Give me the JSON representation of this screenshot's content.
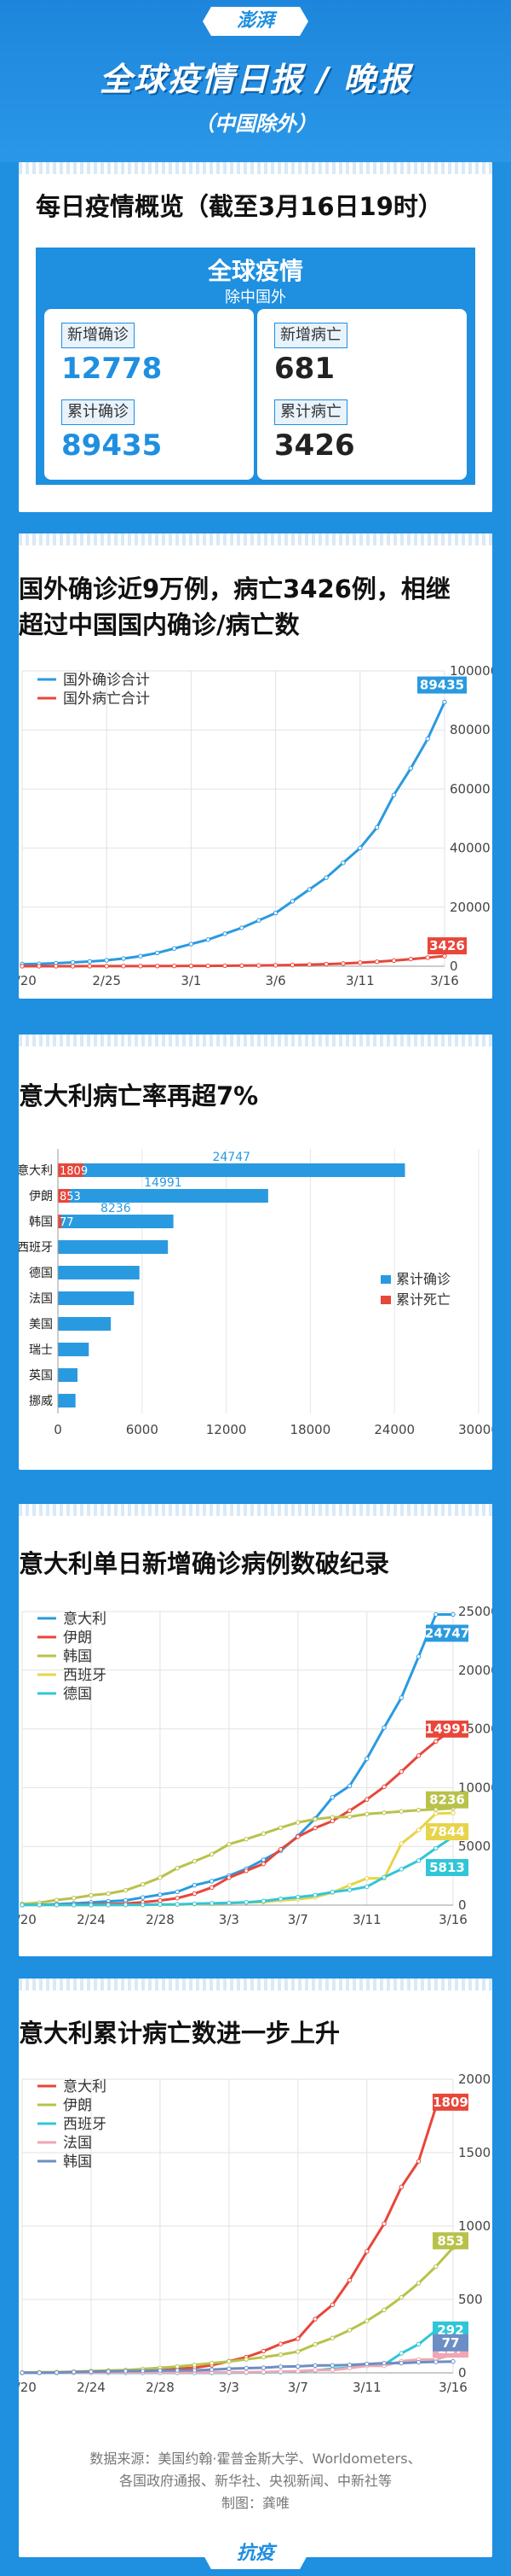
{
  "header": {
    "brand": "澎湃",
    "title": "全球疫情日报 / 晚报",
    "subtitle": "（中国除外）"
  },
  "summary": {
    "heading": "每日疫情概览（截至3月16日19时）",
    "box_title": "全球疫情",
    "box_sub": "除中国外",
    "new_cases_label": "新增确诊",
    "new_cases": "12778",
    "new_deaths_label": "新增病亡",
    "new_deaths": "681",
    "total_cases_label": "累计确诊",
    "total_cases": "89435",
    "total_deaths_label": "累计病亡",
    "total_deaths": "3426",
    "accent": "#1f8fe0"
  },
  "sections": {
    "s1": "国外确诊近9万例，病亡3426例，相继超过中国国内确诊/病亡数",
    "s1_line1": "国外确诊近9万例，病亡3426例，相继",
    "s1_line2": "超过中国国内确诊/病亡数",
    "s2": "意大利病亡率再超7%",
    "s3": "意大利单日新增确诊病例数破纪录",
    "s4": "意大利累计病亡数进一步上升"
  },
  "chart_data": [
    {
      "type": "line",
      "x": [
        "2/20",
        "2/21",
        "2/22",
        "2/23",
        "2/24",
        "2/25",
        "2/26",
        "2/27",
        "2/28",
        "2/29",
        "3/1",
        "3/2",
        "3/3",
        "3/4",
        "3/5",
        "3/6",
        "3/7",
        "3/8",
        "3/9",
        "3/10",
        "3/11",
        "3/12",
        "3/13",
        "3/14",
        "3/15",
        "3/16"
      ],
      "xticks": [
        "2/20",
        "2/25",
        "3/1",
        "3/6",
        "3/11",
        "3/16"
      ],
      "ylim": [
        0,
        100000
      ],
      "yticks": [
        "100000",
        "80000",
        "60000",
        "40000",
        "20000",
        "0"
      ],
      "series": [
        {
          "name": "国外确诊合计",
          "color": "#2a9ae0",
          "end_label": "89435",
          "values": [
            700,
            800,
            1000,
            1300,
            1600,
            2000,
            2600,
            3400,
            4500,
            6000,
            7500,
            9000,
            11000,
            13000,
            15500,
            18000,
            22000,
            26000,
            30000,
            35000,
            40000,
            47000,
            58000,
            67000,
            77000,
            89435
          ]
        },
        {
          "name": "国外病亡合计",
          "color": "#e8463a",
          "end_label": "3426",
          "values": [
            10,
            12,
            14,
            18,
            25,
            30,
            40,
            50,
            60,
            80,
            100,
            120,
            150,
            200,
            260,
            320,
            400,
            550,
            700,
            900,
            1200,
            1500,
            1900,
            2400,
            2900,
            3426
          ]
        }
      ]
    },
    {
      "type": "bar",
      "categories": [
        "意大利",
        "伊朗",
        "韩国",
        "西班牙",
        "德国",
        "法国",
        "美国",
        "瑞士",
        "英国",
        "挪威"
      ],
      "series": [
        {
          "name": "累计确诊",
          "color": "#2a9ae0",
          "values": [
            24747,
            14991,
            8236,
            7844,
            5813,
            5423,
            3774,
            2200,
            1395,
            1256
          ],
          "labels": [
            "24747",
            "14991",
            "8236",
            "",
            "",
            "",
            "",
            "",
            "",
            ""
          ]
        },
        {
          "name": "累计死亡",
          "color": "#e8463a",
          "values": [
            1809,
            853,
            77,
            292,
            13,
            127,
            69,
            14,
            35,
            3
          ],
          "labels": [
            "1809",
            "853",
            "77",
            "",
            "",
            "",
            "",
            "",
            "",
            ""
          ]
        }
      ],
      "xlim": [
        0,
        30000
      ],
      "xticks": [
        "0",
        "6000",
        "12000",
        "18000",
        "24000",
        "30000"
      ]
    },
    {
      "type": "line",
      "x": [
        "2/20",
        "2/21",
        "2/22",
        "2/23",
        "2/24",
        "2/25",
        "2/26",
        "2/27",
        "2/28",
        "2/29",
        "3/1",
        "3/2",
        "3/3",
        "3/4",
        "3/5",
        "3/6",
        "3/7",
        "3/8",
        "3/9",
        "3/10",
        "3/11",
        "3/12",
        "3/13",
        "3/14",
        "3/15",
        "3/16"
      ],
      "xticks": [
        "2/20",
        "2/24",
        "2/28",
        "3/3",
        "3/7",
        "3/11",
        "3/16"
      ],
      "ylim": [
        0,
        25000
      ],
      "yticks": [
        "25000",
        "20000",
        "15000",
        "10000",
        "5000",
        "0"
      ],
      "series": [
        {
          "name": "意大利",
          "color": "#2a9ae0",
          "end_label": "24747",
          "values": [
            3,
            20,
            79,
            150,
            229,
            322,
            400,
            650,
            888,
            1128,
            1694,
            2036,
            2502,
            3089,
            3858,
            4636,
            5883,
            7375,
            9172,
            10149,
            12462,
            15113,
            17660,
            21157,
            24747,
            24747
          ]
        },
        {
          "name": "伊朗",
          "color": "#e8463a",
          "end_label": "14991",
          "values": [
            5,
            18,
            28,
            43,
            61,
            95,
            139,
            245,
            388,
            593,
            978,
            1501,
            2336,
            2922,
            3513,
            4747,
            5823,
            6566,
            7161,
            8042,
            9000,
            10075,
            11364,
            12729,
            13938,
            14991
          ]
        },
        {
          "name": "韩国",
          "color": "#b8c24a",
          "end_label": "8236",
          "values": [
            104,
            204,
            433,
            602,
            833,
            977,
            1261,
            1766,
            2337,
            3150,
            3736,
            4335,
            5186,
            5621,
            6088,
            6593,
            7041,
            7314,
            7478,
            7513,
            7755,
            7869,
            7979,
            8086,
            8162,
            8236
          ]
        },
        {
          "name": "西班牙",
          "color": "#e8d44a",
          "end_label": "7844",
          "values": [
            2,
            2,
            2,
            2,
            2,
            6,
            13,
            15,
            32,
            45,
            84,
            120,
            165,
            222,
            259,
            400,
            500,
            673,
            1073,
            1695,
            2277,
            2277,
            5232,
            6391,
            7798,
            7844
          ]
        },
        {
          "name": "德国",
          "color": "#30c6d8",
          "end_label": "5813",
          "values": [
            16,
            16,
            16,
            16,
            16,
            18,
            21,
            26,
            53,
            66,
            117,
            150,
            188,
            240,
            349,
            534,
            684,
            847,
            1112,
            1296,
            1567,
            2369,
            3062,
            3795,
            4838,
            5813
          ]
        }
      ]
    },
    {
      "type": "line",
      "x": [
        "2/20",
        "2/21",
        "2/22",
        "2/23",
        "2/24",
        "2/25",
        "2/26",
        "2/27",
        "2/28",
        "2/29",
        "3/1",
        "3/2",
        "3/3",
        "3/4",
        "3/5",
        "3/6",
        "3/7",
        "3/8",
        "3/9",
        "3/10",
        "3/11",
        "3/12",
        "3/13",
        "3/14",
        "3/15",
        "3/16"
      ],
      "xticks": [
        "2/20",
        "2/24",
        "2/28",
        "3/3",
        "3/7",
        "3/11",
        "3/16"
      ],
      "ylim": [
        0,
        2000
      ],
      "yticks": [
        "2000",
        "1500",
        "1000",
        "500",
        "0"
      ],
      "series": [
        {
          "name": "意大利",
          "color": "#e8463a",
          "end_label": "1809",
          "values": [
            0,
            1,
            2,
            3,
            7,
            10,
            12,
            17,
            21,
            29,
            34,
            52,
            79,
            107,
            148,
            197,
            233,
            366,
            463,
            631,
            827,
            1016,
            1266,
            1441,
            1809,
            1809
          ]
        },
        {
          "name": "伊朗",
          "color": "#b8c24a",
          "end_label": "853",
          "values": [
            2,
            4,
            5,
            8,
            12,
            16,
            19,
            26,
            34,
            43,
            54,
            66,
            77,
            92,
            107,
            124,
            145,
            194,
            237,
            291,
            354,
            429,
            514,
            611,
            724,
            853
          ]
        },
        {
          "name": "西班牙",
          "color": "#30c6d8",
          "end_label": "292",
          "values": [
            0,
            0,
            0,
            0,
            0,
            0,
            0,
            0,
            0,
            0,
            0,
            0,
            1,
            2,
            3,
            5,
            10,
            17,
            28,
            35,
            54,
            55,
            133,
            195,
            289,
            292
          ]
        },
        {
          "name": "法国",
          "color": "#f0a6b4",
          "end_label": "127",
          "values": [
            1,
            1,
            1,
            1,
            1,
            2,
            2,
            2,
            2,
            2,
            2,
            3,
            4,
            4,
            6,
            9,
            11,
            19,
            19,
            33,
            48,
            48,
            79,
            91,
            91,
            127
          ]
        },
        {
          "name": "韩国",
          "color": "#6b8fc4",
          "end_label": "77",
          "values": [
            1,
            1,
            2,
            6,
            8,
            10,
            12,
            13,
            16,
            17,
            17,
            22,
            28,
            32,
            35,
            42,
            44,
            50,
            51,
            54,
            60,
            66,
            66,
            72,
            75,
            77
          ]
        }
      ]
    }
  ],
  "footer": {
    "line1": "数据来源：美国约翰·霍普金斯大学、Worldometers、",
    "line2": "各国政府通报、新华社、央视新闻、中新社等",
    "line3": "制图：龚唯",
    "tail": "抗疫"
  }
}
